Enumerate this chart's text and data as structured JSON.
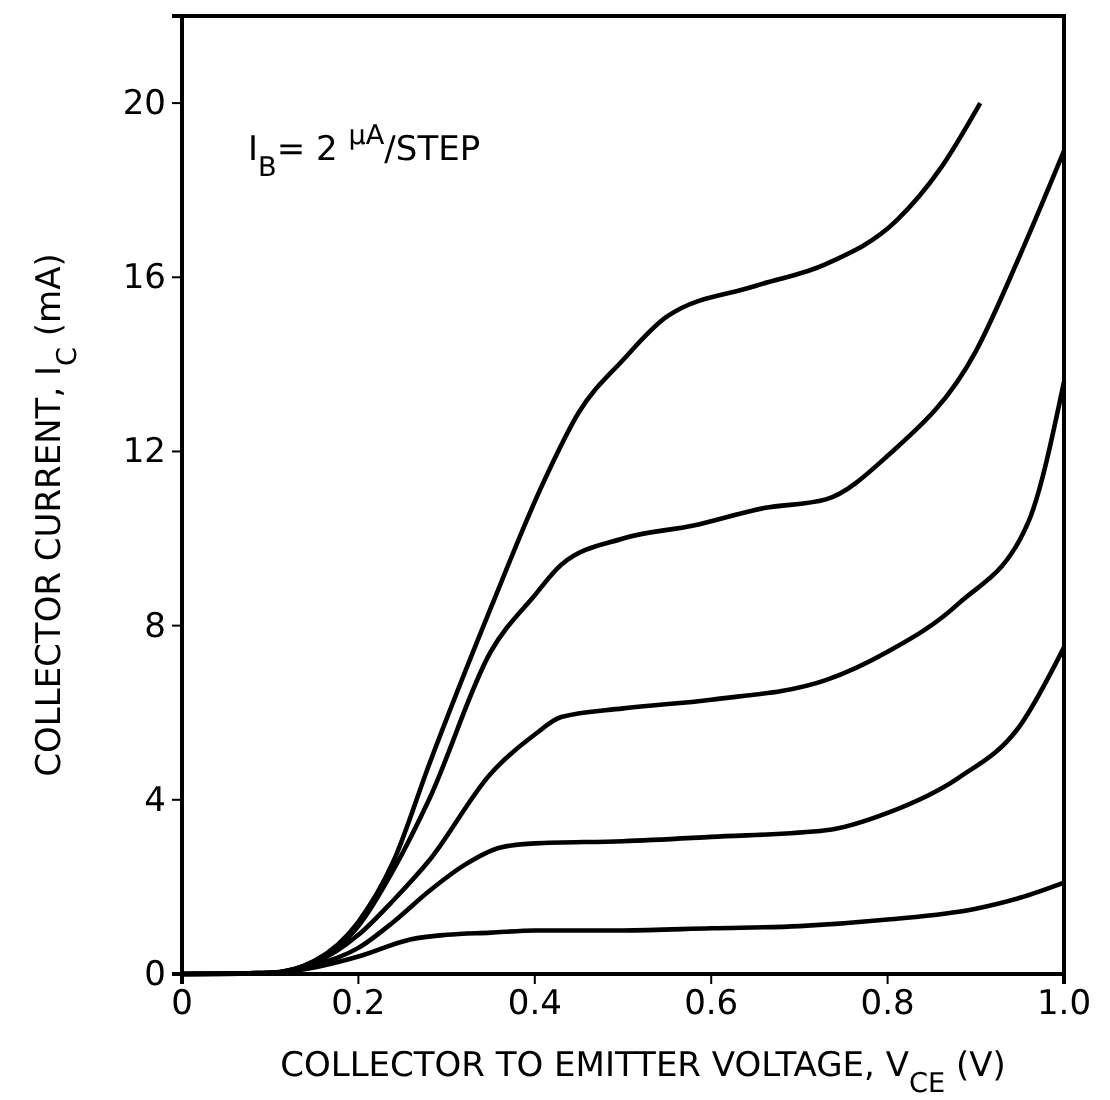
{
  "chart_data": {
    "type": "line",
    "xlabel": "COLLECTOR TO EMITTER VOLTAGE, V$_{CE}$ (V)",
    "ylabel": "COLLECTOR CURRENT, I$_{C}$ (mA)",
    "annotations": [
      "I$_{B}$= 2 $^{μA}$/STEP"
    ],
    "xlim": [
      0,
      1
    ],
    "ylim": [
      0,
      22
    ],
    "xticks": [
      0,
      0.2,
      0.4,
      0.6,
      0.8,
      {
        "value": 1,
        "label": "1.0"
      }
    ],
    "yticks": [
      0,
      4,
      8,
      12,
      16,
      20
    ],
    "grid": false,
    "marker": "none",
    "line_style": "solid",
    "series": [
      {
        "color": "#000000",
        "x": [
          0,
          0.1,
          0.15,
          0.2,
          0.26,
          0.3,
          0.35,
          0.4,
          0.5,
          0.6,
          0.7,
          0.8,
          0.9,
          0.95,
          1.0
        ],
        "values": [
          0,
          0.02,
          0.15,
          0.4,
          0.8,
          0.9,
          0.95,
          1.0,
          1.0,
          1.05,
          1.1,
          1.25,
          1.5,
          1.75,
          2.1
        ]
      },
      {
        "color": "#000000",
        "x": [
          0,
          0.1,
          0.15,
          0.2,
          0.24,
          0.28,
          0.32,
          0.36,
          0.4,
          0.5,
          0.6,
          0.73,
          0.8,
          0.88,
          0.95,
          1.0
        ],
        "values": [
          0,
          0.02,
          0.2,
          0.6,
          1.2,
          1.9,
          2.5,
          2.9,
          3.0,
          3.05,
          3.15,
          3.3,
          3.7,
          4.5,
          5.7,
          7.5
        ]
      },
      {
        "color": "#000000",
        "x": [
          0,
          0.1,
          0.15,
          0.2,
          0.24,
          0.28,
          0.35,
          0.4,
          0.43,
          0.5,
          0.6,
          0.73,
          0.8,
          0.88,
          0.96,
          1.0
        ],
        "values": [
          0,
          0.03,
          0.25,
          0.9,
          1.7,
          2.6,
          4.6,
          5.5,
          5.9,
          6.1,
          6.3,
          6.75,
          7.4,
          8.5,
          10.4,
          13.6
        ]
      },
      {
        "color": "#000000",
        "x": [
          0,
          0.1,
          0.15,
          0.2,
          0.24,
          0.28,
          0.35,
          0.4,
          0.43,
          0.5,
          0.58,
          0.66,
          0.73,
          0.8,
          0.9,
          0.95,
          1.0
        ],
        "values": [
          0,
          0.03,
          0.3,
          1.1,
          2.4,
          4.0,
          7.4,
          8.7,
          9.4,
          10.0,
          10.3,
          10.7,
          10.9,
          11.9,
          14.3,
          16.5,
          18.9
        ]
      },
      {
        "color": "#000000",
        "x": [
          0,
          0.1,
          0.15,
          0.2,
          0.24,
          0.28,
          0.35,
          0.41,
          0.45,
          0.5,
          0.55,
          0.65,
          0.73,
          0.81,
          0.86,
          0.905
        ],
        "values": [
          0,
          0.03,
          0.3,
          1.2,
          2.6,
          4.8,
          8.4,
          11.3,
          12.9,
          14.1,
          15.1,
          15.8,
          16.3,
          17.3,
          18.5,
          20.0
        ]
      }
    ]
  }
}
